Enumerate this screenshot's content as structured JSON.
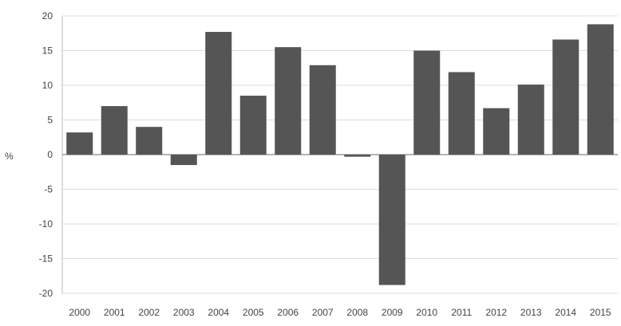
{
  "chart_data": {
    "type": "bar",
    "title": "",
    "xlabel": "",
    "ylabel": "%",
    "ylim": [
      -20,
      20
    ],
    "yticks": [
      20,
      15,
      10,
      5,
      0,
      -5,
      -10,
      -15,
      -20
    ],
    "grid": true,
    "legend": "none",
    "bar_color": "#555555",
    "categories": [
      "2000",
      "2001",
      "2002",
      "2003",
      "2004",
      "2005",
      "2006",
      "2007",
      "2008",
      "2009",
      "2010",
      "2011",
      "2012",
      "2013",
      "2014",
      "2015"
    ],
    "values": [
      3.2,
      7.0,
      4.0,
      -1.5,
      17.7,
      8.5,
      15.5,
      12.9,
      -0.3,
      -18.8,
      15.0,
      11.9,
      6.7,
      10.1,
      16.6,
      18.8
    ]
  }
}
